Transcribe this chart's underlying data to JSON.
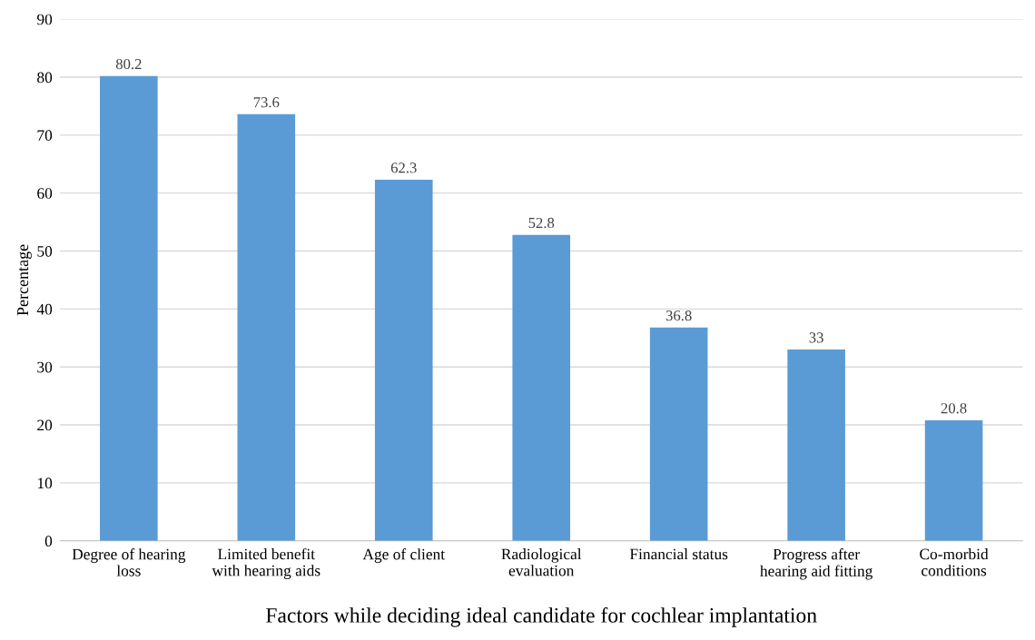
{
  "chart_data": {
    "type": "bar",
    "xlabel": "Factors while deciding ideal candidate for cochlear implantation",
    "ylabel": "Percentage",
    "categories": [
      "Degree of hearing\nloss",
      "Limited benefit\nwith hearing aids",
      "Age of client",
      "Radiological\nevaluation",
      "Financial status",
      "Progress after\nhearing aid fitting",
      "Co-morbid\nconditions"
    ],
    "values": [
      80.2,
      73.6,
      62.3,
      52.8,
      36.8,
      33,
      20.8
    ],
    "color": "#5b9bd5",
    "ylim": [
      0,
      90
    ],
    "yticks": [
      0,
      10,
      20,
      30,
      40,
      50,
      60,
      70,
      80,
      90
    ],
    "grid": "y",
    "data_labels": true
  }
}
